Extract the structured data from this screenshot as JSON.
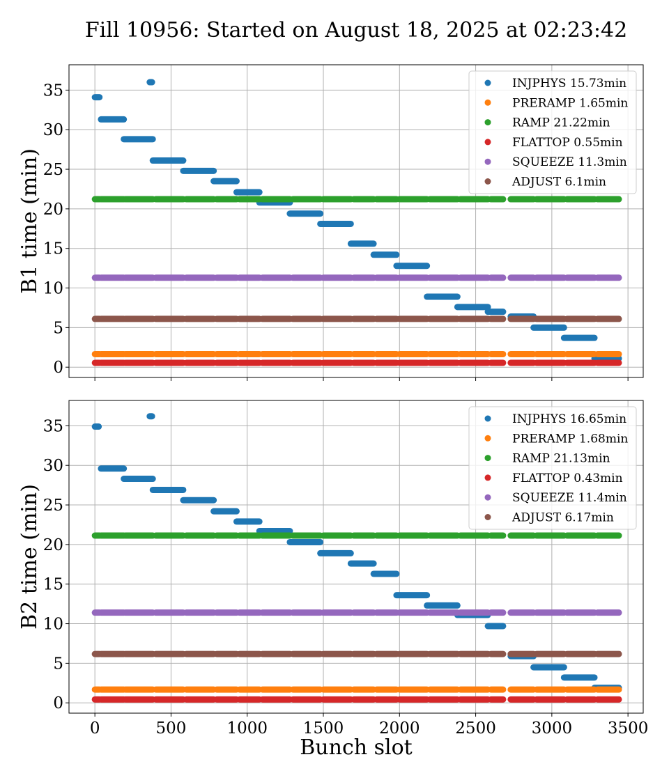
{
  "title": "Fill 10956: Started on August 18, 2025 at 02:23:42",
  "chart_data": {
    "type": "scatter",
    "xlabel": "Bunch slot",
    "xlim": [
      -170,
      3600
    ],
    "xticks": [
      0,
      500,
      1000,
      1500,
      2000,
      2500,
      3000,
      3500
    ],
    "grid": true,
    "legend_position": "top-right",
    "panels": [
      {
        "ylabel": "B1 time (min)",
        "ylim": [
          -1.3,
          38.2
        ],
        "yticks": [
          0,
          5,
          10,
          15,
          20,
          25,
          30,
          35
        ],
        "series": [
          {
            "name": "INJPHYS 15.73min",
            "color": "#1f77b4",
            "segments": [
              [
                0,
                30,
                34.1
              ],
              [
                360,
                375,
                36.0
              ],
              [
                40,
                190,
                31.3
              ],
              [
                190,
                380,
                28.8
              ],
              [
                380,
                580,
                26.1
              ],
              [
                580,
                780,
                24.8
              ],
              [
                780,
                930,
                23.5
              ],
              [
                930,
                1080,
                22.1
              ],
              [
                1080,
                1280,
                20.8
              ],
              [
                1280,
                1480,
                19.4
              ],
              [
                1480,
                1680,
                18.1
              ],
              [
                1680,
                1830,
                15.6
              ],
              [
                1830,
                1980,
                14.2
              ],
              [
                1980,
                2180,
                12.8
              ],
              [
                2180,
                2380,
                8.9
              ],
              [
                2380,
                2580,
                7.6
              ],
              [
                2580,
                2680,
                7.0
              ],
              [
                2730,
                2880,
                6.4
              ],
              [
                2880,
                3080,
                5.0
              ],
              [
                3080,
                3280,
                3.7
              ],
              [
                3280,
                3440,
                1.1
              ]
            ]
          },
          {
            "name": "PRERAMP 1.65min",
            "color": "#ff7f0e",
            "y": 1.65
          },
          {
            "name": "RAMP 21.22min",
            "color": "#2ca02c",
            "y": 21.22
          },
          {
            "name": "FLATTOP 0.55min",
            "color": "#d62728",
            "y": 0.55
          },
          {
            "name": "SQUEEZE 11.3min",
            "color": "#9467bd",
            "y": 11.3
          },
          {
            "name": "ADJUST 6.1min",
            "color": "#8c564b",
            "y": 6.1
          }
        ]
      },
      {
        "ylabel": "B2 time (min)",
        "ylim": [
          -1.3,
          38.2
        ],
        "yticks": [
          0,
          5,
          10,
          15,
          20,
          25,
          30,
          35
        ],
        "series": [
          {
            "name": "INJPHYS 16.65min",
            "color": "#1f77b4",
            "segments": [
              [
                0,
                25,
                34.9
              ],
              [
                360,
                375,
                36.2
              ],
              [
                40,
                190,
                29.6
              ],
              [
                190,
                380,
                28.3
              ],
              [
                380,
                580,
                26.9
              ],
              [
                580,
                780,
                25.6
              ],
              [
                780,
                930,
                24.2
              ],
              [
                930,
                1080,
                22.9
              ],
              [
                1080,
                1280,
                21.7
              ],
              [
                1280,
                1480,
                20.3
              ],
              [
                1480,
                1680,
                18.9
              ],
              [
                1680,
                1830,
                17.6
              ],
              [
                1830,
                1980,
                16.3
              ],
              [
                1980,
                2180,
                13.6
              ],
              [
                2180,
                2380,
                12.3
              ],
              [
                2380,
                2580,
                11.1
              ],
              [
                2580,
                2680,
                9.7
              ],
              [
                2730,
                2880,
                5.9
              ],
              [
                2880,
                3080,
                4.5
              ],
              [
                3080,
                3280,
                3.2
              ],
              [
                3280,
                3440,
                1.9
              ]
            ]
          },
          {
            "name": "PRERAMP 1.68min",
            "color": "#ff7f0e",
            "y": 1.68
          },
          {
            "name": "RAMP 21.13min",
            "color": "#2ca02c",
            "y": 21.13
          },
          {
            "name": "FLATTOP 0.43min",
            "color": "#d62728",
            "y": 0.43
          },
          {
            "name": "SQUEEZE 11.4min",
            "color": "#9467bd",
            "y": 11.4
          },
          {
            "name": "ADJUST 6.17min",
            "color": "#8c564b",
            "y": 6.17
          }
        ]
      }
    ],
    "filled_ranges": [
      [
        0,
        30
      ],
      [
        40,
        190
      ],
      [
        200,
        380
      ],
      [
        400,
        580
      ],
      [
        600,
        780
      ],
      [
        800,
        930
      ],
      [
        950,
        1080
      ],
      [
        1100,
        1280
      ],
      [
        1300,
        1480
      ],
      [
        1500,
        1680
      ],
      [
        1700,
        1830
      ],
      [
        1850,
        1980
      ],
      [
        2000,
        2180
      ],
      [
        2200,
        2380
      ],
      [
        2400,
        2580
      ],
      [
        2600,
        2680
      ],
      [
        2730,
        2880
      ],
      [
        2900,
        3080
      ],
      [
        3100,
        3280
      ],
      [
        3300,
        3440
      ]
    ]
  }
}
